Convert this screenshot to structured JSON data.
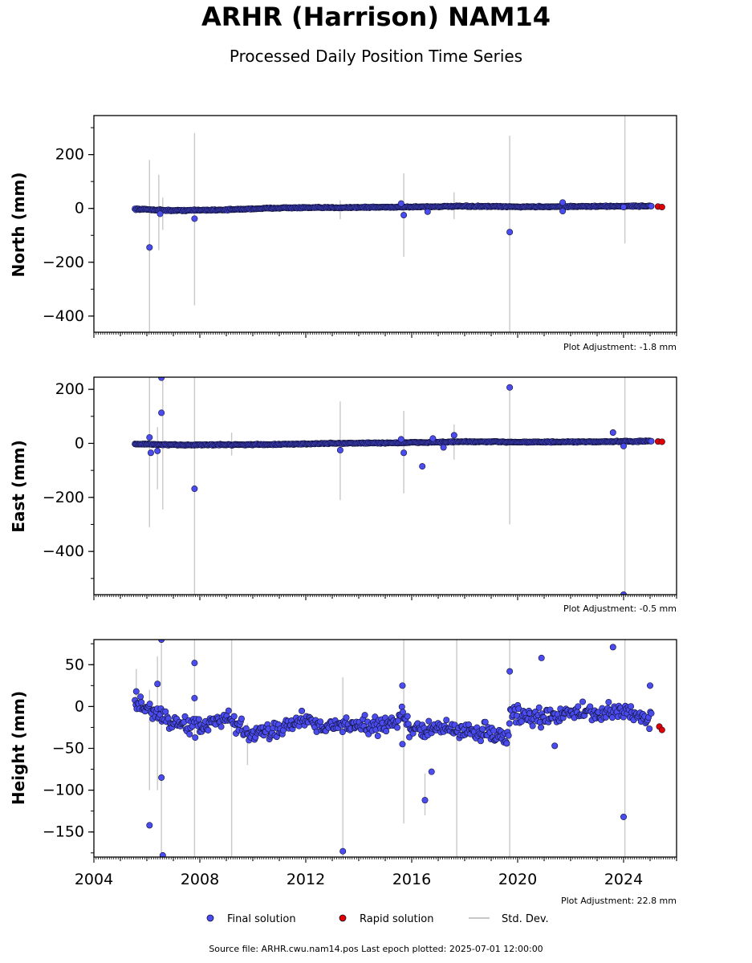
{
  "title": "ARHR (Harrison) NAM14",
  "subtitle": "Processed Daily Position Time Series",
  "legend": {
    "final": "Final solution",
    "rapid": "Rapid solution",
    "std": "Std. Dev."
  },
  "colors": {
    "final_fill": "#4a4cf0",
    "final_edge": "#111133",
    "rapid": "#e00000",
    "stddev": "#c8c8c8"
  },
  "footer": "Source file: ARHR.cwu.nam14.pos  Last epoch plotted: 2025-07-01 12:00:00",
  "chart_data": [
    {
      "type": "scatter",
      "ylabel": "North (mm)",
      "adjustment": "Plot Adjustment: -1.8 mm",
      "xlim": [
        2004,
        2026
      ],
      "ylim": [
        -460,
        345
      ],
      "yticks": [
        200,
        0,
        -200,
        -400
      ],
      "yticklabels": [
        "200",
        "0",
        "−200",
        "−400"
      ],
      "trend": [
        [
          2005.5,
          -2
        ],
        [
          2007.0,
          -8
        ],
        [
          2009.0,
          -5
        ],
        [
          2011.0,
          2
        ],
        [
          2013.0,
          3
        ],
        [
          2015.5,
          5
        ],
        [
          2018.0,
          8
        ],
        [
          2020.0,
          6
        ],
        [
          2022.0,
          7
        ],
        [
          2025.0,
          9
        ]
      ],
      "band": 3,
      "final_outliers": [
        [
          2006.1,
          -145
        ],
        [
          2006.5,
          -20
        ],
        [
          2007.8,
          -38
        ],
        [
          2015.6,
          18
        ],
        [
          2015.7,
          -25
        ],
        [
          2016.6,
          -12
        ],
        [
          2019.7,
          -88
        ],
        [
          2021.7,
          22
        ],
        [
          2021.7,
          -10
        ],
        [
          2024.0,
          5
        ]
      ],
      "rapid": [
        [
          2025.3,
          7
        ],
        [
          2025.45,
          5
        ]
      ],
      "stddev_bars": [
        [
          2006.1,
          -460,
          180
        ],
        [
          2006.45,
          -155,
          125
        ],
        [
          2006.6,
          -80,
          40
        ],
        [
          2007.8,
          -360,
          280
        ],
        [
          2013.3,
          -40,
          30
        ],
        [
          2015.7,
          -180,
          130
        ],
        [
          2017.6,
          -40,
          60
        ],
        [
          2019.7,
          -460,
          270
        ],
        [
          2024.05,
          -130,
          345
        ]
      ]
    },
    {
      "type": "scatter",
      "ylabel": "East (mm)",
      "adjustment": "Plot Adjustment: -0.5 mm",
      "xlim": [
        2004,
        2026
      ],
      "ylim": [
        -560,
        245
      ],
      "yticks": [
        200,
        0,
        -200,
        -400
      ],
      "yticklabels": [
        "200",
        "0",
        "−200",
        "−400"
      ],
      "trend": [
        [
          2005.5,
          -2
        ],
        [
          2007.0,
          -6
        ],
        [
          2009.0,
          -5
        ],
        [
          2011.0,
          -4
        ],
        [
          2013.0,
          0
        ],
        [
          2015.5,
          2
        ],
        [
          2018.0,
          6
        ],
        [
          2020.0,
          5
        ],
        [
          2022.0,
          5
        ],
        [
          2025.0,
          8
        ]
      ],
      "band": 3,
      "final_outliers": [
        [
          2006.1,
          22
        ],
        [
          2006.15,
          -35
        ],
        [
          2006.4,
          -28
        ],
        [
          2006.55,
          113
        ],
        [
          2006.55,
          243
        ],
        [
          2007.8,
          -168
        ],
        [
          2013.3,
          -25
        ],
        [
          2015.6,
          15
        ],
        [
          2015.7,
          -35
        ],
        [
          2016.4,
          -85
        ],
        [
          2016.8,
          18
        ],
        [
          2017.2,
          -15
        ],
        [
          2017.6,
          30
        ],
        [
          2019.7,
          207
        ],
        [
          2023.6,
          40
        ],
        [
          2024.0,
          -10
        ],
        [
          2024.0,
          -560
        ]
      ],
      "rapid": [
        [
          2025.3,
          7
        ],
        [
          2025.45,
          6
        ]
      ],
      "stddev_bars": [
        [
          2006.1,
          -310,
          245
        ],
        [
          2006.4,
          -170,
          60
        ],
        [
          2006.6,
          -245,
          245
        ],
        [
          2007.8,
          -560,
          245
        ],
        [
          2009.2,
          -45,
          40
        ],
        [
          2013.3,
          -210,
          155
        ],
        [
          2015.7,
          -185,
          120
        ],
        [
          2017.6,
          -60,
          70
        ],
        [
          2019.7,
          -300,
          200
        ],
        [
          2024.05,
          -560,
          245
        ]
      ]
    },
    {
      "type": "scatter",
      "ylabel": "Height (mm)",
      "adjustment": "Plot Adjustment: 22.8 mm",
      "xlim": [
        2004,
        2026
      ],
      "ylim": [
        -180,
        80
      ],
      "yticks": [
        50,
        0,
        -50,
        -100,
        -150
      ],
      "yticklabels": [
        "50",
        "0",
        "−50",
        "−100",
        "−150"
      ],
      "xticks": [
        2004,
        2008,
        2012,
        2016,
        2020,
        2024
      ],
      "xticklabels": [
        "2004",
        "2008",
        "2012",
        "2016",
        "2020",
        "2024"
      ],
      "trend": [
        [
          2005.5,
          5
        ],
        [
          2006.2,
          -5
        ],
        [
          2007.0,
          -20
        ],
        [
          2008.0,
          -25
        ],
        [
          2009.0,
          -15
        ],
        [
          2010.0,
          -35
        ],
        [
          2011.0,
          -25
        ],
        [
          2012.0,
          -15
        ],
        [
          2013.0,
          -25
        ],
        [
          2014.0,
          -20
        ],
        [
          2015.0,
          -25
        ],
        [
          2015.6,
          -10
        ],
        [
          2016.0,
          -30
        ],
        [
          2017.0,
          -25
        ],
        [
          2018.0,
          -30
        ],
        [
          2019.0,
          -30
        ],
        [
          2019.6,
          -40
        ],
        [
          2019.75,
          -5
        ],
        [
          2020.0,
          -10
        ],
        [
          2021.0,
          -15
        ],
        [
          2022.0,
          -5
        ],
        [
          2023.0,
          -10
        ],
        [
          2024.0,
          -5
        ],
        [
          2025.0,
          -15
        ]
      ],
      "band": 15,
      "final_outliers": [
        [
          2005.6,
          18
        ],
        [
          2006.1,
          -142
        ],
        [
          2006.4,
          27
        ],
        [
          2006.55,
          80
        ],
        [
          2006.55,
          -85
        ],
        [
          2006.6,
          -178
        ],
        [
          2007.8,
          52
        ],
        [
          2007.8,
          10
        ],
        [
          2013.4,
          -173
        ],
        [
          2015.65,
          25
        ],
        [
          2015.65,
          -45
        ],
        [
          2016.5,
          -112
        ],
        [
          2016.75,
          -78
        ],
        [
          2019.7,
          42
        ],
        [
          2020.9,
          58
        ],
        [
          2021.4,
          -47
        ],
        [
          2023.6,
          71
        ],
        [
          2024.0,
          -132
        ],
        [
          2025.0,
          25
        ]
      ],
      "rapid": [
        [
          2025.35,
          -24
        ],
        [
          2025.45,
          -28
        ]
      ],
      "stddev_bars": [
        [
          2005.6,
          -5,
          45
        ],
        [
          2006.1,
          -100,
          20
        ],
        [
          2006.4,
          -100,
          60
        ],
        [
          2006.55,
          -180,
          80
        ],
        [
          2007.8,
          -180,
          80
        ],
        [
          2009.2,
          -180,
          80
        ],
        [
          2009.8,
          -70,
          -20
        ],
        [
          2013.4,
          -180,
          35
        ],
        [
          2015.7,
          -140,
          80
        ],
        [
          2016.5,
          -130,
          -80
        ],
        [
          2017.7,
          -180,
          80
        ],
        [
          2019.7,
          -180,
          80
        ],
        [
          2024.05,
          -180,
          80
        ]
      ]
    }
  ]
}
